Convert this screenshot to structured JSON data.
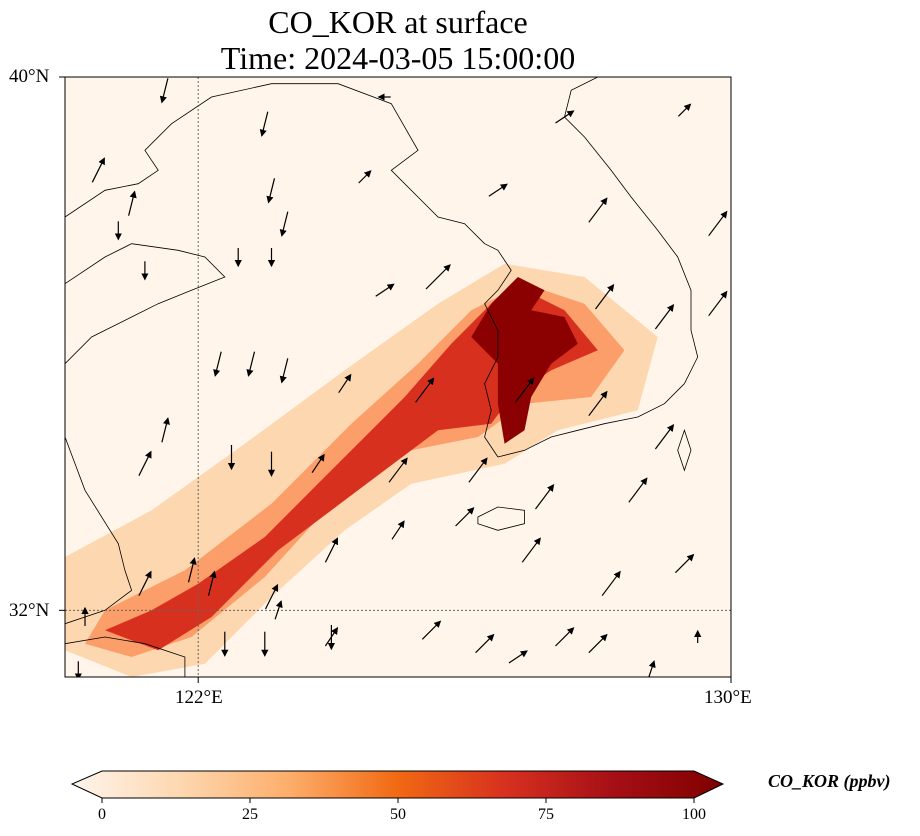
{
  "title": {
    "line1": "CO_KOR at surface",
    "line2": "Time: 2024-03-05 15:00:00"
  },
  "map": {
    "lon_range": [
      120,
      130
    ],
    "lat_range": [
      31,
      40
    ],
    "gridline_lon": 122,
    "gridline_lat": 32,
    "x_ticks": [
      {
        "value": 122,
        "label": "122°E"
      },
      {
        "value": 130,
        "label": "130°E"
      }
    ],
    "y_ticks": [
      {
        "value": 40,
        "label": "40°N"
      },
      {
        "value": 32,
        "label": "32°N"
      }
    ],
    "colors": {
      "background": "#fff5eb",
      "coastline": "#000000",
      "gridline": "#666666",
      "wind_arrow": "#000000"
    },
    "plume_regions": [
      {
        "level": "low",
        "color": "#fdd7b0",
        "lonlat": [
          [
            120,
            31.4
          ],
          [
            120,
            32.8
          ],
          [
            121.3,
            33.5
          ],
          [
            122.7,
            34.5
          ],
          [
            124.2,
            35.6
          ],
          [
            125.6,
            36.6
          ],
          [
            126.6,
            37.2
          ],
          [
            127.8,
            37.0
          ],
          [
            128.9,
            36.1
          ],
          [
            128.6,
            35.0
          ],
          [
            127.4,
            34.7
          ],
          [
            126.6,
            34.2
          ],
          [
            125.2,
            33.9
          ],
          [
            124.2,
            33.2
          ],
          [
            123.1,
            32.2
          ],
          [
            122.1,
            31.2
          ],
          [
            121.0,
            31.0
          ]
        ]
      },
      {
        "level": "mid",
        "color": "#fb9e6a",
        "lonlat": [
          [
            120.3,
            31.5
          ],
          [
            120.6,
            32.0
          ],
          [
            121.8,
            32.6
          ],
          [
            123.1,
            33.6
          ],
          [
            124.3,
            34.8
          ],
          [
            125.3,
            35.7
          ],
          [
            126.1,
            36.5
          ],
          [
            126.9,
            36.9
          ],
          [
            127.8,
            36.6
          ],
          [
            128.4,
            35.9
          ],
          [
            127.9,
            35.2
          ],
          [
            126.9,
            35.1
          ],
          [
            126.2,
            34.6
          ],
          [
            125.2,
            34.4
          ],
          [
            124.0,
            33.6
          ],
          [
            123.0,
            32.5
          ],
          [
            121.9,
            31.6
          ],
          [
            121.0,
            31.3
          ]
        ]
      },
      {
        "level": "high",
        "color": "#d7301f",
        "lonlat": [
          [
            120.6,
            31.7
          ],
          [
            121.3,
            32.0
          ],
          [
            122.0,
            32.4
          ],
          [
            123.0,
            33.1
          ],
          [
            124.0,
            34.1
          ],
          [
            125.1,
            35.2
          ],
          [
            125.8,
            36.0
          ],
          [
            126.4,
            36.6
          ],
          [
            126.9,
            36.8
          ],
          [
            127.5,
            36.5
          ],
          [
            128.0,
            35.9
          ],
          [
            127.3,
            35.6
          ],
          [
            126.7,
            35.2
          ],
          [
            126.4,
            34.8
          ],
          [
            125.6,
            34.7
          ],
          [
            124.4,
            33.8
          ],
          [
            123.2,
            32.9
          ],
          [
            122.2,
            31.9
          ],
          [
            121.4,
            31.4
          ]
        ]
      },
      {
        "level": "very-high",
        "color": "#8b0000",
        "lonlat": [
          [
            126.1,
            36.1
          ],
          [
            126.4,
            36.6
          ],
          [
            126.8,
            37.0
          ],
          [
            127.2,
            36.8
          ],
          [
            127.0,
            36.5
          ],
          [
            127.5,
            36.4
          ],
          [
            127.7,
            36.0
          ],
          [
            127.3,
            35.7
          ],
          [
            127.0,
            35.2
          ],
          [
            126.9,
            34.7
          ],
          [
            126.6,
            34.5
          ],
          [
            126.5,
            35.1
          ],
          [
            126.5,
            35.7
          ]
        ]
      }
    ],
    "wind_vectors": [
      [
        121.5,
        39.8,
        -0.1,
        -0.4
      ],
      [
        123.0,
        39.3,
        -0.1,
        -0.4
      ],
      [
        124.8,
        39.7,
        -0.2,
        0.0
      ],
      [
        127.5,
        39.4,
        0.3,
        0.2
      ],
      [
        129.3,
        39.5,
        0.2,
        0.2
      ],
      [
        120.5,
        38.6,
        0.2,
        0.4
      ],
      [
        121.0,
        38.1,
        0.1,
        0.4
      ],
      [
        123.1,
        38.3,
        -0.1,
        -0.4
      ],
      [
        123.3,
        37.8,
        -0.1,
        -0.4
      ],
      [
        124.5,
        38.5,
        0.2,
        0.2
      ],
      [
        126.5,
        38.3,
        0.3,
        0.2
      ],
      [
        128.0,
        38.0,
        0.3,
        0.4
      ],
      [
        129.8,
        37.8,
        0.3,
        0.4
      ],
      [
        120.8,
        37.7,
        0.0,
        -0.3
      ],
      [
        121.2,
        37.1,
        0.0,
        -0.3
      ],
      [
        122.6,
        37.3,
        0.0,
        -0.3
      ],
      [
        123.1,
        37.3,
        0.0,
        -0.3
      ],
      [
        124.8,
        36.8,
        0.3,
        0.2
      ],
      [
        125.6,
        37.0,
        0.4,
        0.4
      ],
      [
        128.1,
        36.7,
        0.3,
        0.4
      ],
      [
        129.0,
        36.4,
        0.3,
        0.4
      ],
      [
        129.8,
        36.6,
        0.3,
        0.4
      ],
      [
        122.3,
        35.7,
        -0.1,
        -0.4
      ],
      [
        122.8,
        35.7,
        -0.1,
        -0.4
      ],
      [
        123.3,
        35.6,
        -0.1,
        -0.4
      ],
      [
        124.2,
        35.4,
        0.2,
        0.3
      ],
      [
        125.4,
        35.3,
        0.3,
        0.4
      ],
      [
        126.9,
        35.3,
        0.3,
        0.4
      ],
      [
        128.0,
        35.1,
        0.3,
        0.4
      ],
      [
        129.0,
        34.6,
        0.3,
        0.4
      ],
      [
        121.2,
        34.2,
        0.2,
        0.4
      ],
      [
        121.5,
        34.7,
        0.1,
        0.4
      ],
      [
        122.5,
        34.3,
        0.0,
        -0.4
      ],
      [
        123.1,
        34.2,
        0.0,
        -0.4
      ],
      [
        123.8,
        34.2,
        0.2,
        0.3
      ],
      [
        125.0,
        34.1,
        0.3,
        0.4
      ],
      [
        126.2,
        34.1,
        0.3,
        0.4
      ],
      [
        127.2,
        33.7,
        0.3,
        0.4
      ],
      [
        128.6,
        33.8,
        0.3,
        0.4
      ],
      [
        121.9,
        32.6,
        0.1,
        0.4
      ],
      [
        123.1,
        32.2,
        0.2,
        0.4
      ],
      [
        124.0,
        32.9,
        0.2,
        0.4
      ],
      [
        125.0,
        33.2,
        0.2,
        0.3
      ],
      [
        126.0,
        33.4,
        0.3,
        0.3
      ],
      [
        127.0,
        32.9,
        0.3,
        0.4
      ],
      [
        128.2,
        32.4,
        0.3,
        0.4
      ],
      [
        129.3,
        32.7,
        0.3,
        0.3
      ],
      [
        120.3,
        31.9,
        0.0,
        0.3
      ],
      [
        121.2,
        32.4,
        0.2,
        0.4
      ],
      [
        122.2,
        32.4,
        0.1,
        0.4
      ],
      [
        123.2,
        32.0,
        0.1,
        0.3
      ],
      [
        124.0,
        31.6,
        0.2,
        0.3
      ],
      [
        125.5,
        31.7,
        0.3,
        0.3
      ],
      [
        126.3,
        31.5,
        0.3,
        0.3
      ],
      [
        127.5,
        31.6,
        0.3,
        0.3
      ],
      [
        128.0,
        31.5,
        0.3,
        0.3
      ],
      [
        129.5,
        31.6,
        0.0,
        0.2
      ],
      [
        120.2,
        31.1,
        0.0,
        -0.3
      ],
      [
        122.4,
        31.5,
        0.0,
        -0.4
      ],
      [
        123.0,
        31.5,
        0.0,
        -0.4
      ],
      [
        124.0,
        31.6,
        0.0,
        -0.4
      ],
      [
        126.8,
        31.3,
        0.3,
        0.2
      ],
      [
        128.8,
        31.1,
        0.1,
        0.3
      ]
    ],
    "coast_china_north": [
      [
        120,
        37.9
      ],
      [
        120.6,
        38.3
      ],
      [
        121.1,
        38.4
      ],
      [
        121.4,
        38.6
      ],
      [
        121.2,
        38.9
      ],
      [
        121.6,
        39.3
      ],
      [
        122.2,
        39.7
      ],
      [
        123.1,
        39.9
      ],
      [
        124.1,
        39.9
      ],
      [
        124.9,
        39.6
      ],
      [
        125.3,
        38.9
      ],
      [
        124.9,
        38.6
      ],
      [
        125.3,
        38.2
      ],
      [
        125.6,
        37.9
      ],
      [
        126.0,
        37.8
      ],
      [
        126.3,
        37.5
      ]
    ],
    "coast_shandong": [
      [
        120,
        36.9
      ],
      [
        120.6,
        37.3
      ],
      [
        121.0,
        37.5
      ],
      [
        121.7,
        37.4
      ],
      [
        122.1,
        37.3
      ],
      [
        122.4,
        37.0
      ],
      [
        121.9,
        36.8
      ],
      [
        121.4,
        36.6
      ],
      [
        121.0,
        36.4
      ],
      [
        120.4,
        36.1
      ],
      [
        120,
        35.7
      ]
    ],
    "coast_china_east": [
      [
        120,
        34.6
      ],
      [
        120.3,
        33.8
      ],
      [
        120.8,
        33.0
      ],
      [
        120.9,
        32.6
      ],
      [
        121.0,
        32.3
      ],
      [
        120.6,
        32.0
      ],
      [
        120.0,
        31.8
      ]
    ],
    "coast_yangtze": [
      [
        120,
        31.5
      ],
      [
        120.6,
        31.6
      ],
      [
        121.2,
        31.5
      ],
      [
        121.8,
        31.3
      ],
      [
        121.8,
        31.0
      ],
      [
        121.3,
        30.9
      ],
      [
        121.0,
        30.9
      ]
    ],
    "coast_korea_west": [
      [
        126.3,
        37.5
      ],
      [
        126.5,
        37.4
      ],
      [
        126.7,
        37.1
      ],
      [
        126.5,
        36.8
      ],
      [
        126.3,
        36.6
      ],
      [
        126.5,
        36.2
      ],
      [
        126.5,
        35.8
      ],
      [
        126.3,
        35.4
      ],
      [
        126.4,
        35.0
      ],
      [
        126.3,
        34.6
      ],
      [
        126.5,
        34.3
      ]
    ],
    "coast_korea_south": [
      [
        126.5,
        34.3
      ],
      [
        126.9,
        34.4
      ],
      [
        127.3,
        34.6
      ],
      [
        127.7,
        34.7
      ],
      [
        128.1,
        34.8
      ],
      [
        128.6,
        34.9
      ],
      [
        129.0,
        35.1
      ],
      [
        129.3,
        35.4
      ]
    ],
    "coast_korea_east": [
      [
        129.3,
        35.4
      ],
      [
        129.5,
        35.8
      ],
      [
        129.4,
        36.2
      ],
      [
        129.4,
        36.8
      ],
      [
        129.2,
        37.3
      ],
      [
        128.9,
        37.7
      ],
      [
        128.5,
        38.2
      ],
      [
        128.2,
        38.6
      ],
      [
        127.8,
        39.1
      ],
      [
        127.5,
        39.4
      ],
      [
        127.6,
        39.8
      ],
      [
        128.0,
        40.0
      ]
    ],
    "jeju_lonlat": [
      [
        126.2,
        33.4
      ],
      [
        126.5,
        33.55
      ],
      [
        126.9,
        33.5
      ],
      [
        126.9,
        33.3
      ],
      [
        126.5,
        33.2
      ],
      [
        126.2,
        33.3
      ]
    ],
    "tsushima_lonlat": [
      [
        129.3,
        34.7
      ],
      [
        129.4,
        34.4
      ],
      [
        129.3,
        34.1
      ],
      [
        129.2,
        34.4
      ]
    ],
    "colorbar": {
      "label": "CO_KOR (ppbv)",
      "ticks": [
        0,
        25,
        50,
        75,
        100
      ],
      "range": [
        0,
        100
      ],
      "colors": [
        "#fff5eb",
        "#fdd7b0",
        "#fdae6b",
        "#f16913",
        "#d7301f",
        "#a50f15",
        "#7f0000"
      ]
    }
  }
}
